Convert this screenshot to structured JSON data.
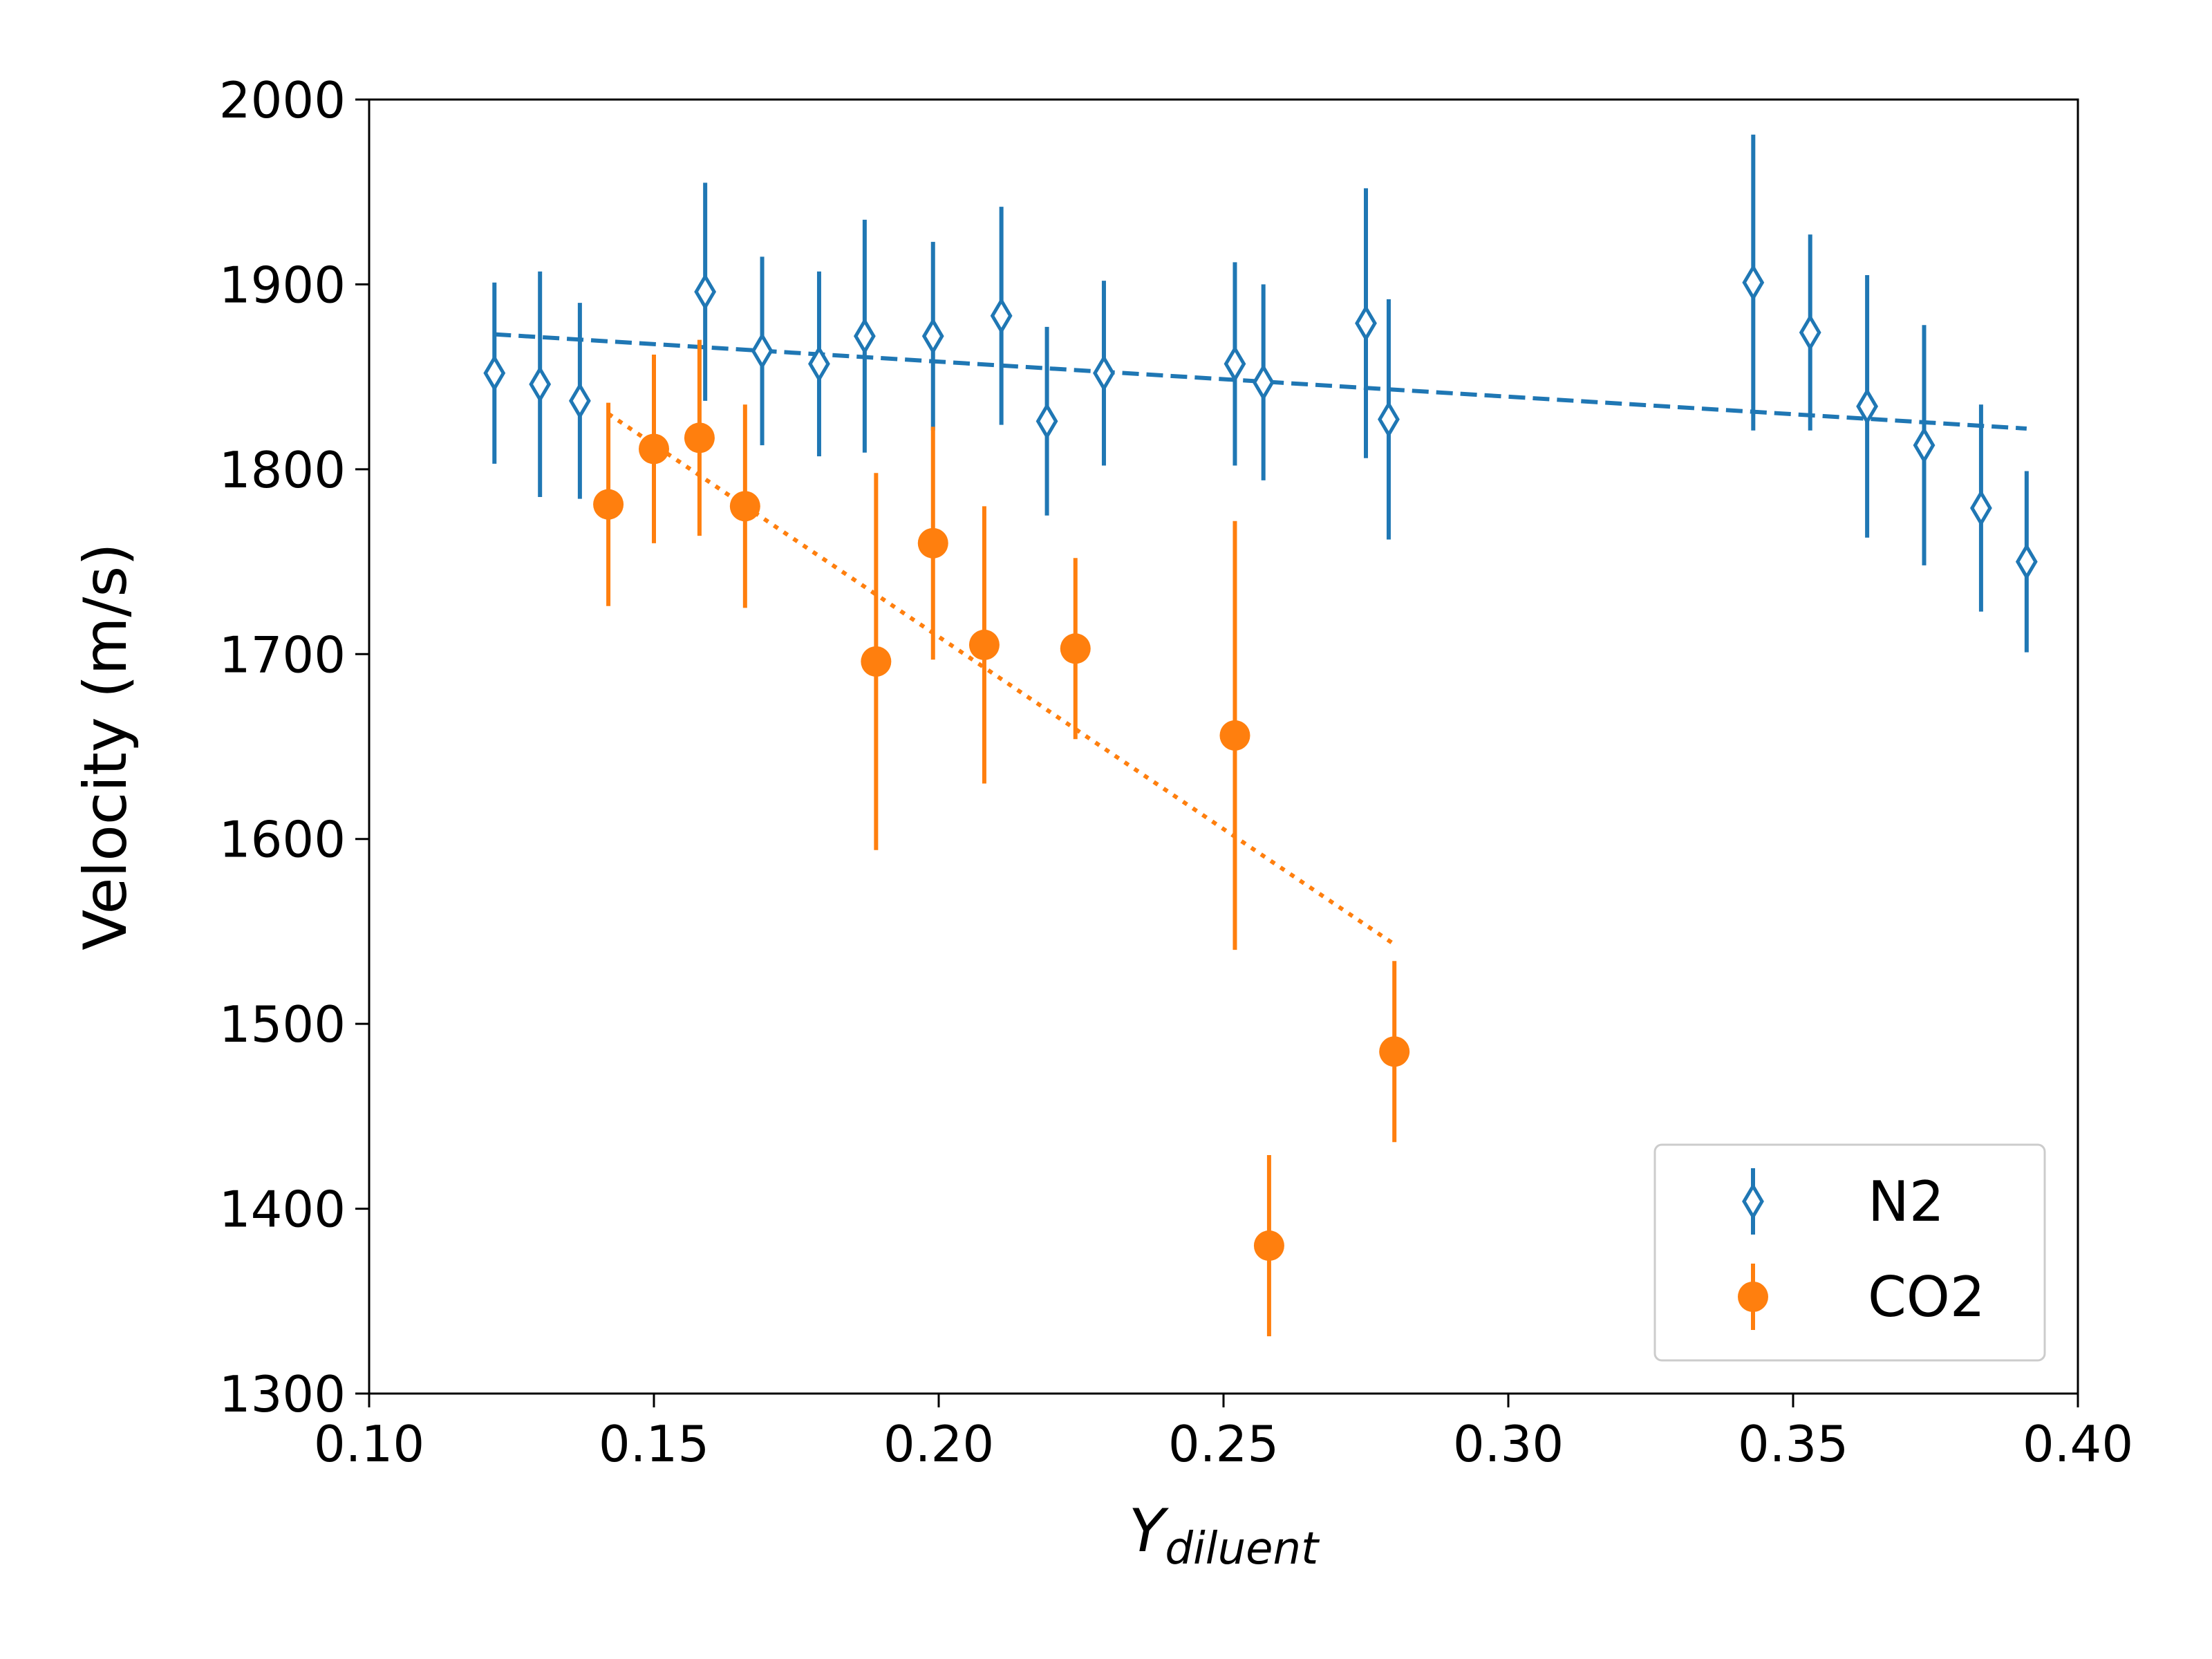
{
  "chart_data": {
    "type": "scatter",
    "ylabel": "Velocity (m/s)",
    "xlabel_main": "Y",
    "xlabel_sub": "diluent",
    "xlim": [
      0.1,
      0.4
    ],
    "ylim": [
      1300,
      2000
    ],
    "xticks": [
      "0.10",
      "0.15",
      "0.20",
      "0.25",
      "0.30",
      "0.35",
      "0.40"
    ],
    "yticks": [
      "1300",
      "1400",
      "1500",
      "1600",
      "1700",
      "1800",
      "1900",
      "2000"
    ],
    "legend_position": "bottom-right",
    "series": [
      {
        "name": "N2",
        "color": "#1f77b4",
        "marker": "thin-diamond-open",
        "points": [
          {
            "x": 0.122,
            "y": 1852,
            "err": 49
          },
          {
            "x": 0.13,
            "y": 1846,
            "err": 61
          },
          {
            "x": 0.137,
            "y": 1837,
            "err": 53
          },
          {
            "x": 0.159,
            "y": 1896,
            "err": 59
          },
          {
            "x": 0.169,
            "y": 1864,
            "err": 51
          },
          {
            "x": 0.179,
            "y": 1857,
            "err": 50
          },
          {
            "x": 0.187,
            "y": 1872,
            "err": 63
          },
          {
            "x": 0.199,
            "y": 1872,
            "err": 51
          },
          {
            "x": 0.211,
            "y": 1883,
            "err": 59
          },
          {
            "x": 0.219,
            "y": 1826,
            "err": 51
          },
          {
            "x": 0.229,
            "y": 1852,
            "err": 50
          },
          {
            "x": 0.252,
            "y": 1857,
            "err": 55
          },
          {
            "x": 0.257,
            "y": 1847,
            "err": 53
          },
          {
            "x": 0.275,
            "y": 1879,
            "err": 73
          },
          {
            "x": 0.279,
            "y": 1827,
            "err": 65
          },
          {
            "x": 0.343,
            "y": 1901,
            "err": 80
          },
          {
            "x": 0.353,
            "y": 1874,
            "err": 53
          },
          {
            "x": 0.363,
            "y": 1834,
            "err": 71
          },
          {
            "x": 0.373,
            "y": 1813,
            "err": 65
          },
          {
            "x": 0.383,
            "y": 1779,
            "err": 56
          },
          {
            "x": 0.391,
            "y": 1750,
            "err": 49
          }
        ],
        "fit": {
          "style": "dashed",
          "x": [
            0.122,
            0.391
          ],
          "y": [
            1873,
            1822
          ]
        }
      },
      {
        "name": "CO2",
        "color": "#ff7f0e",
        "marker": "filled-circle",
        "points": [
          {
            "x": 0.142,
            "y": 1781,
            "err": 55
          },
          {
            "x": 0.15,
            "y": 1811,
            "err": 51
          },
          {
            "x": 0.158,
            "y": 1817,
            "err": 53
          },
          {
            "x": 0.166,
            "y": 1780,
            "err": 55
          },
          {
            "x": 0.189,
            "y": 1696,
            "err": 102
          },
          {
            "x": 0.199,
            "y": 1760,
            "err": 63
          },
          {
            "x": 0.208,
            "y": 1705,
            "err": 75
          },
          {
            "x": 0.224,
            "y": 1703,
            "err": 49
          },
          {
            "x": 0.252,
            "y": 1656,
            "err": 116
          },
          {
            "x": 0.258,
            "y": 1380,
            "err": 49
          },
          {
            "x": 0.28,
            "y": 1485,
            "err": 49
          }
        ],
        "fit": {
          "style": "dotted",
          "x": [
            0.142,
            0.28
          ],
          "y": [
            1830,
            1543
          ]
        }
      }
    ]
  }
}
